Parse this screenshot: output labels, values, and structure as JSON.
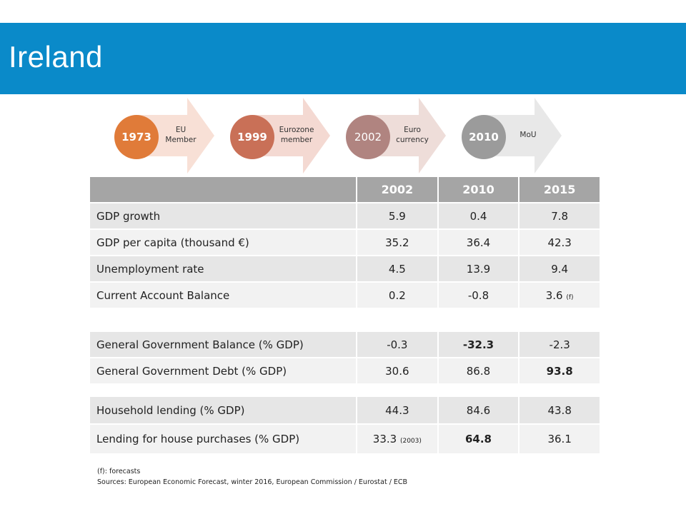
{
  "title": "Ireland",
  "timeline": [
    {
      "year": "1973",
      "label_line1": "EU",
      "label_line2": "Member",
      "circle_color": "#e07b39",
      "arrow_color": "#f8e0d6"
    },
    {
      "year": "1999",
      "label_line1": "Eurozone",
      "label_line2": "member",
      "circle_color": "#c97057",
      "arrow_color": "#f4d9d2"
    },
    {
      "year": "2002",
      "label_line1": "Euro",
      "label_line2": "currency",
      "circle_color": "#b08480",
      "arrow_color": "#eeddd9"
    },
    {
      "year": "2010",
      "label_line1": "MoU",
      "label_line2": "",
      "circle_color": "#9b9b9b",
      "arrow_color": "#e8e8e8"
    }
  ],
  "table": {
    "headers": [
      "",
      "2002",
      "2010",
      "2015"
    ],
    "section1": [
      {
        "label": "GDP growth",
        "v2002": "5.9",
        "v2010": "0.4",
        "v2015": "7.8",
        "note2002": "",
        "note2015": ""
      },
      {
        "label": "GDP per capita (thousand €)",
        "v2002": "35.2",
        "v2010": "36.4",
        "v2015": "42.3",
        "note2002": "",
        "note2015": ""
      },
      {
        "label": "Unemployment rate",
        "v2002": "4.5",
        "v2010": "13.9",
        "v2015": "9.4",
        "note2002": "",
        "note2015": ""
      },
      {
        "label": "Current Account Balance",
        "v2002": "0.2",
        "v2010": "-0.8",
        "v2015": "3.6",
        "note2002": "",
        "note2015": "(f)"
      }
    ],
    "section2": [
      {
        "label": "General Government Balance (% GDP)",
        "v2002": "-0.3",
        "v2010": "-32.3",
        "v2015": "-2.3",
        "note2002": "",
        "note2015": ""
      },
      {
        "label": "General Government Debt (% GDP)",
        "v2002": "30.6",
        "v2010": "86.8",
        "v2015": "93.8",
        "note2002": "",
        "note2015": ""
      }
    ],
    "section3": [
      {
        "label": "Household lending (% GDP)",
        "v2002": "44.3",
        "v2010": "84.6",
        "v2015": "43.8",
        "note2002": "",
        "note2015": ""
      },
      {
        "label": "Lending for house purchases (% GDP)",
        "v2002": "33.3",
        "v2010": "64.8",
        "v2015": "36.1",
        "note2002": "(2003)",
        "note2015": ""
      }
    ]
  },
  "footer": {
    "line1": "(f): forecasts",
    "line2": "Sources: European Economic Forecast, winter 2016, European Commission / Eurostat / ECB"
  }
}
